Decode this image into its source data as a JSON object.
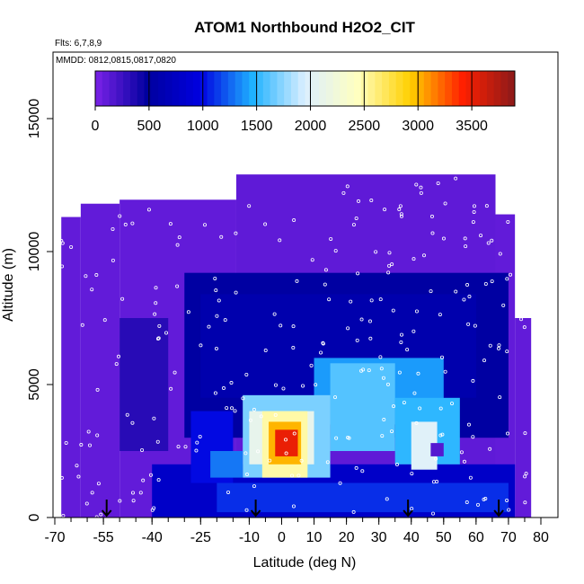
{
  "chart_data": {
    "type": "heatmap",
    "title": "ATOM1 Northbound H2O2_CIT",
    "flights_note": "Flts: 6,7,8,9",
    "dates_note": "MMDD: 0812,0815,0817,0820",
    "xlabel": "Latitude (deg N)",
    "ylabel": "Altitude (m)",
    "xlim": [
      -70,
      80
    ],
    "ylim": [
      0,
      17500
    ],
    "x_ticks": [
      -70,
      -55,
      -40,
      -25,
      -10,
      0,
      10,
      20,
      30,
      40,
      50,
      60,
      70,
      80
    ],
    "x_minor_step": 5,
    "y_ticks": [
      0,
      5000,
      10000,
      15000
    ],
    "colorbar": {
      "ticks": [
        0,
        500,
        1000,
        1500,
        2000,
        2500,
        3000,
        3500
      ],
      "range": [
        0,
        3900
      ],
      "colors": [
        "#7b22e8",
        "#00009e",
        "#0000e0",
        "#1fb2ff",
        "#dcefff",
        "#ffffc0",
        "#ffd000",
        "#ff2000",
        "#8b1a1a"
      ],
      "placement": "top inside"
    },
    "arrows_latitude": [
      -54,
      -8,
      39,
      67
    ],
    "regions": [
      {
        "x0": -68,
        "x1": -62,
        "y0": 0,
        "y1": 11300,
        "v": 100
      },
      {
        "x0": -62,
        "x1": -50,
        "y0": 0,
        "y1": 11800,
        "v": 100
      },
      {
        "x0": -50,
        "x1": -14,
        "y0": 0,
        "y1": 11950,
        "v": 100
      },
      {
        "x0": -14,
        "x1": 66,
        "y0": 0,
        "y1": 12900,
        "v": 110
      },
      {
        "x0": 66,
        "x1": 72,
        "y0": 0,
        "y1": 11400,
        "v": 100
      },
      {
        "x0": 72,
        "x1": 77,
        "y0": 0,
        "y1": 7500,
        "v": 100
      },
      {
        "x0": -50,
        "x1": -35,
        "y0": 2500,
        "y1": 7500,
        "v": 330
      },
      {
        "x0": -30,
        "x1": 70,
        "y0": 3000,
        "y1": 9200,
        "v": 520
      },
      {
        "x0": -25,
        "x1": 60,
        "y0": 4500,
        "y1": 8400,
        "v": 600
      },
      {
        "x0": -40,
        "x1": 72,
        "y0": 0,
        "y1": 2000,
        "v": 800
      },
      {
        "x0": -20,
        "x1": 70,
        "y0": 200,
        "y1": 1300,
        "v": 1100
      },
      {
        "x0": -28,
        "x1": -15,
        "y0": 1300,
        "y1": 4000,
        "v": 1000
      },
      {
        "x0": 10,
        "x1": 50,
        "y0": 3500,
        "y1": 6000,
        "v": 1400
      },
      {
        "x0": 15,
        "x1": 35,
        "y0": 2500,
        "y1": 5800,
        "v": 1600
      },
      {
        "x0": 35,
        "x1": 55,
        "y0": 2000,
        "y1": 4500,
        "v": 1500
      },
      {
        "x0": -12,
        "x1": 15,
        "y0": 1500,
        "y1": 4600,
        "v": 1700
      },
      {
        "x0": -10,
        "x1": 10,
        "y0": 2000,
        "y1": 4000,
        "v": 2100
      },
      {
        "x0": 40,
        "x1": 48,
        "y0": 1800,
        "y1": 3600,
        "v": 2000
      },
      {
        "x0": -6,
        "x1": 8,
        "y0": 1500,
        "y1": 4000,
        "v": 2500
      },
      {
        "x0": -4,
        "x1": 6,
        "y0": 2000,
        "y1": 3600,
        "v": 3000
      },
      {
        "x0": -2,
        "x1": 5,
        "y0": 2300,
        "y1": 3300,
        "v": 3500
      },
      {
        "x0": -22,
        "x1": -12,
        "y0": 1500,
        "y1": 2500,
        "v": 1300
      },
      {
        "x0": 46,
        "x1": 50,
        "y0": 2300,
        "y1": 2800,
        "v": 150
      }
    ]
  }
}
